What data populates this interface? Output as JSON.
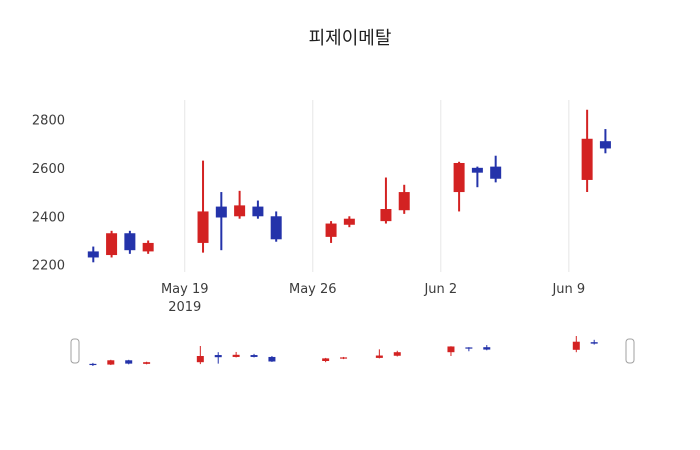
{
  "chart_data": {
    "type": "candlestick",
    "title": "피제이메탈",
    "legend_position": "none",
    "grid": "x-only",
    "up_color": "#d32222",
    "down_color": "#2433aa",
    "grid_color": "#e6e6e6",
    "axis_text_color": "#3c3c3c",
    "background_color": "#ffffff",
    "y_ticks": [
      2200,
      2400,
      2600,
      2800
    ],
    "y_range": [
      2170,
      2880
    ],
    "x_range": [
      "2019-05-13",
      "2019-06-13"
    ],
    "x_ticks": [
      {
        "date": "2019-05-19",
        "label": "May 19",
        "sublabel": "2019"
      },
      {
        "date": "2019-05-26",
        "label": "May 26",
        "sublabel": ""
      },
      {
        "date": "2019-06-02",
        "label": "Jun 2",
        "sublabel": ""
      },
      {
        "date": "2019-06-09",
        "label": "Jun 9",
        "sublabel": ""
      }
    ],
    "candles": [
      {
        "date": "2019-05-14",
        "open": 2255,
        "high": 2275,
        "low": 2210,
        "close": 2230
      },
      {
        "date": "2019-05-15",
        "open": 2240,
        "high": 2340,
        "low": 2230,
        "close": 2330
      },
      {
        "date": "2019-05-16",
        "open": 2330,
        "high": 2340,
        "low": 2245,
        "close": 2260
      },
      {
        "date": "2019-05-17",
        "open": 2255,
        "high": 2300,
        "low": 2245,
        "close": 2290
      },
      {
        "date": "2019-05-20",
        "open": 2290,
        "high": 2630,
        "low": 2250,
        "close": 2420
      },
      {
        "date": "2019-05-21",
        "open": 2440,
        "high": 2500,
        "low": 2260,
        "close": 2395
      },
      {
        "date": "2019-05-22",
        "open": 2400,
        "high": 2505,
        "low": 2390,
        "close": 2445
      },
      {
        "date": "2019-05-23",
        "open": 2440,
        "high": 2465,
        "low": 2390,
        "close": 2400
      },
      {
        "date": "2019-05-24",
        "open": 2400,
        "high": 2420,
        "low": 2295,
        "close": 2305
      },
      {
        "date": "2019-05-27",
        "open": 2315,
        "high": 2380,
        "low": 2290,
        "close": 2370
      },
      {
        "date": "2019-05-28",
        "open": 2365,
        "high": 2400,
        "low": 2355,
        "close": 2390
      },
      {
        "date": "2019-05-30",
        "open": 2380,
        "high": 2560,
        "low": 2370,
        "close": 2430
      },
      {
        "date": "2019-05-31",
        "open": 2425,
        "high": 2530,
        "low": 2410,
        "close": 2500
      },
      {
        "date": "2019-06-03",
        "open": 2500,
        "high": 2625,
        "low": 2420,
        "close": 2620
      },
      {
        "date": "2019-06-04",
        "open": 2600,
        "high": 2605,
        "low": 2520,
        "close": 2580
      },
      {
        "date": "2019-06-05",
        "open": 2605,
        "high": 2650,
        "low": 2540,
        "close": 2555
      },
      {
        "date": "2019-06-10",
        "open": 2550,
        "high": 2840,
        "low": 2500,
        "close": 2720
      },
      {
        "date": "2019-06-11",
        "open": 2710,
        "high": 2760,
        "low": 2660,
        "close": 2680
      }
    ],
    "rangeslider": {
      "visible": true,
      "handle_fill": "#ffffff",
      "handle_border": "#a0a0a0"
    }
  }
}
